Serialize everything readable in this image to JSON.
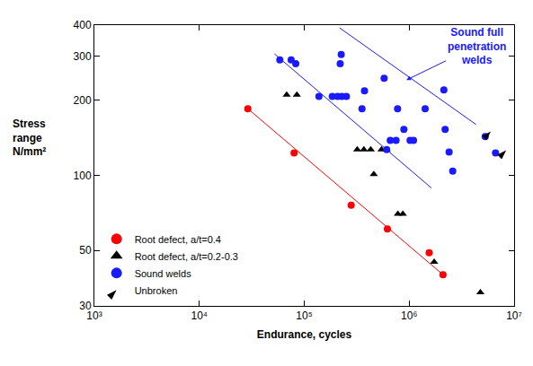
{
  "chart_data": {
    "type": "scatter",
    "x_label": "Endurance, cycles",
    "y_label": "Stress\nrange\nN/mm²",
    "log": true,
    "grid": false,
    "legend": "lower left",
    "xlim": [
      1000,
      10000000
    ],
    "xticks": [
      {
        "value": 1000,
        "label": "10³"
      },
      {
        "value": 10000,
        "label": "10⁴"
      },
      {
        "value": 100000,
        "label": "10⁵"
      },
      {
        "value": 1000000,
        "label": "10⁶"
      },
      {
        "value": 10000000,
        "label": "10⁷"
      }
    ],
    "ylim": [
      30,
      400
    ],
    "yticks": [
      30,
      50,
      100,
      200,
      300,
      400
    ],
    "series": [
      {
        "name": "Root defect, a/t=0.4",
        "color": "#ff0000",
        "marker": "circle",
        "x": [
          29000,
          80000,
          280000,
          620000,
          1550000,
          2100000
        ],
        "values": [
          185,
          123,
          76,
          61,
          49,
          40
        ]
      },
      {
        "name": "Root defect, a/t=0.2-0.3",
        "color": "#000000",
        "marker": "triangle-up",
        "x": [
          68000,
          85000,
          320000,
          370000,
          430000,
          545000,
          610000,
          460000,
          780000,
          870000,
          1730000,
          4770000
        ],
        "values": [
          210,
          210,
          127,
          127,
          127,
          127,
          127,
          101,
          70,
          70,
          45,
          34
        ]
      },
      {
        "name": "Sound welds",
        "color": "#1a1aff",
        "marker": "circle",
        "x": [
          58500,
          75000,
          83000,
          138000,
          185000,
          208000,
          228000,
          252000,
          225000,
          220000,
          375000,
          355000,
          577000,
          610000,
          660000,
          750000,
          775000,
          890000,
          1020000,
          1100000,
          1420000,
          2140000,
          2200000,
          2400000,
          2600000,
          5300000,
          6650000
        ],
        "values": [
          290,
          290,
          280,
          207,
          207,
          207,
          207,
          207,
          305,
          280,
          218,
          185,
          245,
          127,
          138,
          138,
          185,
          153,
          138,
          138,
          185,
          220,
          153,
          124,
          104,
          143,
          123
        ]
      },
      {
        "name": "Unbroken",
        "color": "#000000",
        "marker": "arrow",
        "x": [
          6000000,
          8400000
        ],
        "values": [
          150,
          126
        ]
      }
    ],
    "trend_lines": [
      {
        "color": "#ff0000",
        "x": [
          29000,
          2100000
        ],
        "values": [
          185,
          40
        ]
      },
      {
        "color": "#1a1aff",
        "x": [
          217000,
          4330000
        ],
        "values": [
          390,
          160
        ]
      },
      {
        "color": "#1a1aff",
        "x": [
          52000,
          1630000
        ],
        "values": [
          307,
          89
        ]
      }
    ],
    "annotations": [
      {
        "text": "Sound full\npenetration\nwelds",
        "x": 940000,
        "y": 241,
        "color": "#1a1aff"
      }
    ]
  }
}
